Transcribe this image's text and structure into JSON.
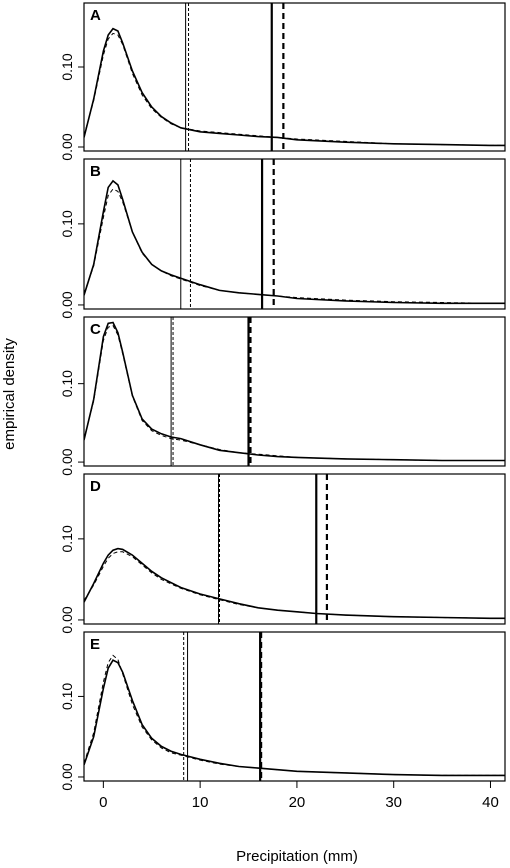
{
  "figure": {
    "ylabel": "empirical density",
    "xlabel": "Precipitation (mm)"
  },
  "chart_data": [
    {
      "type": "line",
      "panel_label": "A",
      "xlim": [
        -2,
        41.5
      ],
      "ylim": [
        -0.005,
        0.18
      ],
      "yticks": [
        0.0,
        0.1
      ],
      "ytick_labels": [
        "0.00",
        "0.10"
      ],
      "series": [
        {
          "style": "solid",
          "x": [
            -2,
            -1,
            0,
            0.5,
            1,
            1.5,
            2,
            3,
            4,
            5,
            6,
            7,
            8,
            10,
            12,
            14,
            16,
            18,
            20,
            25,
            30,
            35,
            40,
            41.5
          ],
          "y": [
            0.012,
            0.06,
            0.12,
            0.14,
            0.148,
            0.145,
            0.13,
            0.095,
            0.068,
            0.05,
            0.038,
            0.03,
            0.024,
            0.019,
            0.017,
            0.015,
            0.013,
            0.012,
            0.009,
            0.006,
            0.004,
            0.003,
            0.002,
            0.002
          ]
        },
        {
          "style": "dashed",
          "x": [
            -2,
            -1,
            0,
            0.5,
            1,
            1.5,
            2,
            3,
            4,
            5,
            6,
            7,
            8,
            10,
            12,
            14,
            16,
            18,
            20,
            25,
            30,
            35,
            40,
            41.5
          ],
          "y": [
            0.014,
            0.058,
            0.115,
            0.135,
            0.142,
            0.14,
            0.128,
            0.092,
            0.065,
            0.048,
            0.037,
            0.029,
            0.024,
            0.02,
            0.018,
            0.016,
            0.014,
            0.012,
            0.01,
            0.007,
            0.004,
            0.003,
            0.002,
            0.002
          ]
        }
      ],
      "vlines": [
        {
          "x": 8.5,
          "style": "thin-solid"
        },
        {
          "x": 8.8,
          "style": "thin-dashed"
        },
        {
          "x": 17.4,
          "style": "thick-solid"
        },
        {
          "x": 18.6,
          "style": "thick-dashed"
        }
      ]
    },
    {
      "type": "line",
      "panel_label": "B",
      "xlim": [
        -2,
        41.5
      ],
      "ylim": [
        -0.005,
        0.18
      ],
      "yticks": [
        0.0,
        0.1
      ],
      "ytick_labels": [
        "0.00",
        "0.10"
      ],
      "series": [
        {
          "style": "solid",
          "x": [
            -2,
            -1,
            0,
            0.5,
            1,
            1.5,
            2,
            3,
            4,
            5,
            6,
            7,
            8,
            10,
            12,
            14,
            16,
            18,
            20,
            25,
            30,
            35,
            40,
            41.5
          ],
          "y": [
            0.012,
            0.05,
            0.115,
            0.145,
            0.153,
            0.148,
            0.13,
            0.09,
            0.065,
            0.05,
            0.042,
            0.037,
            0.033,
            0.025,
            0.018,
            0.015,
            0.013,
            0.011,
            0.008,
            0.005,
            0.003,
            0.002,
            0.002,
            0.002
          ]
        },
        {
          "style": "dashed",
          "x": [
            -2,
            -1,
            0,
            0.5,
            1,
            1.5,
            2,
            3,
            4,
            5,
            6,
            7,
            8,
            10,
            12,
            14,
            16,
            18,
            20,
            25,
            30,
            35,
            40,
            41.5
          ],
          "y": [
            0.014,
            0.048,
            0.108,
            0.135,
            0.143,
            0.14,
            0.127,
            0.09,
            0.064,
            0.05,
            0.042,
            0.036,
            0.032,
            0.024,
            0.018,
            0.015,
            0.013,
            0.011,
            0.009,
            0.006,
            0.004,
            0.003,
            0.002,
            0.002
          ]
        }
      ],
      "vlines": [
        {
          "x": 8.0,
          "style": "thin-solid"
        },
        {
          "x": 9.0,
          "style": "thin-dashed"
        },
        {
          "x": 16.4,
          "style": "thick-solid"
        },
        {
          "x": 17.6,
          "style": "thick-dashed"
        }
      ]
    },
    {
      "type": "line",
      "panel_label": "C",
      "xlim": [
        -2,
        41.5
      ],
      "ylim": [
        -0.005,
        0.185
      ],
      "yticks": [
        0.0,
        0.1
      ],
      "ytick_labels": [
        "0.00",
        "0.10"
      ],
      "series": [
        {
          "style": "solid",
          "x": [
            -2,
            -1,
            0,
            0.5,
            1,
            1.5,
            2,
            3,
            4,
            5,
            6,
            7,
            8,
            10,
            12,
            14,
            16,
            18,
            20,
            25,
            30,
            35,
            40,
            41.5
          ],
          "y": [
            0.028,
            0.08,
            0.16,
            0.177,
            0.178,
            0.165,
            0.14,
            0.085,
            0.055,
            0.042,
            0.036,
            0.032,
            0.03,
            0.022,
            0.015,
            0.012,
            0.009,
            0.007,
            0.006,
            0.004,
            0.003,
            0.002,
            0.002,
            0.002
          ]
        },
        {
          "style": "dashed",
          "x": [
            -2,
            -1,
            0,
            0.5,
            1,
            1.5,
            2,
            3,
            4,
            5,
            6,
            7,
            8,
            10,
            12,
            14,
            16,
            18,
            20,
            25,
            30,
            35,
            40,
            41.5
          ],
          "y": [
            0.03,
            0.078,
            0.155,
            0.172,
            0.174,
            0.162,
            0.138,
            0.084,
            0.053,
            0.04,
            0.034,
            0.03,
            0.028,
            0.022,
            0.016,
            0.012,
            0.01,
            0.008,
            0.006,
            0.004,
            0.003,
            0.002,
            0.002,
            0.002
          ]
        }
      ],
      "vlines": [
        {
          "x": 7.0,
          "style": "thin-solid"
        },
        {
          "x": 7.2,
          "style": "thin-dashed"
        },
        {
          "x": 15.0,
          "style": "thick-solid"
        },
        {
          "x": 15.2,
          "style": "thick-dashed"
        }
      ]
    },
    {
      "type": "line",
      "panel_label": "D",
      "xlim": [
        -2,
        41.5
      ],
      "ylim": [
        -0.005,
        0.18
      ],
      "yticks": [
        0.0,
        0.1
      ],
      "ytick_labels": [
        "0.00",
        "0.10"
      ],
      "series": [
        {
          "style": "solid",
          "x": [
            -2,
            -1,
            0,
            0.5,
            1,
            1.5,
            2,
            3,
            4,
            5,
            6,
            8,
            10,
            12,
            14,
            16,
            18,
            20,
            22,
            25,
            30,
            35,
            40,
            41.5
          ],
          "y": [
            0.022,
            0.045,
            0.07,
            0.08,
            0.086,
            0.088,
            0.087,
            0.08,
            0.07,
            0.06,
            0.052,
            0.04,
            0.032,
            0.026,
            0.02,
            0.015,
            0.012,
            0.01,
            0.008,
            0.006,
            0.004,
            0.003,
            0.002,
            0.002
          ]
        },
        {
          "style": "dashed",
          "x": [
            -2,
            -1,
            0,
            0.5,
            1,
            1.5,
            2,
            3,
            4,
            5,
            6,
            8,
            10,
            12,
            14,
            16,
            18,
            20,
            22,
            25,
            30,
            35,
            40,
            41.5
          ],
          "y": [
            0.024,
            0.043,
            0.066,
            0.076,
            0.082,
            0.084,
            0.084,
            0.078,
            0.068,
            0.058,
            0.05,
            0.039,
            0.031,
            0.025,
            0.019,
            0.015,
            0.012,
            0.01,
            0.008,
            0.006,
            0.004,
            0.003,
            0.002,
            0.002
          ]
        }
      ],
      "vlines": [
        {
          "x": 11.9,
          "style": "thin-solid"
        },
        {
          "x": 12.0,
          "style": "thin-dashed"
        },
        {
          "x": 22.0,
          "style": "thick-solid"
        },
        {
          "x": 23.1,
          "style": "thick-dashed"
        }
      ]
    },
    {
      "type": "line",
      "panel_label": "E",
      "xlim": [
        -2,
        41.5
      ],
      "ylim": [
        -0.005,
        0.18
      ],
      "yticks": [
        0.0,
        0.1
      ],
      "ytick_labels": [
        "0.00",
        "0.10"
      ],
      "series": [
        {
          "style": "solid",
          "x": [
            -2,
            -1,
            0,
            0.5,
            1,
            1.5,
            2,
            3,
            4,
            5,
            6,
            7,
            8,
            10,
            12,
            14,
            16,
            18,
            20,
            25,
            30,
            35,
            40,
            41.5
          ],
          "y": [
            0.015,
            0.05,
            0.11,
            0.135,
            0.145,
            0.142,
            0.13,
            0.095,
            0.065,
            0.048,
            0.038,
            0.032,
            0.028,
            0.022,
            0.017,
            0.013,
            0.011,
            0.009,
            0.007,
            0.005,
            0.003,
            0.002,
            0.002,
            0.002
          ]
        },
        {
          "style": "dashed",
          "x": [
            -2,
            -1,
            0,
            0.5,
            1,
            1.5,
            2,
            3,
            4,
            5,
            6,
            7,
            8,
            10,
            12,
            14,
            16,
            18,
            20,
            25,
            30,
            35,
            40,
            41.5
          ],
          "y": [
            0.017,
            0.055,
            0.118,
            0.142,
            0.151,
            0.146,
            0.128,
            0.09,
            0.062,
            0.046,
            0.036,
            0.03,
            0.027,
            0.021,
            0.016,
            0.013,
            0.011,
            0.009,
            0.007,
            0.005,
            0.003,
            0.002,
            0.002,
            0.002
          ]
        }
      ],
      "vlines": [
        {
          "x": 8.3,
          "style": "thin-dashed"
        },
        {
          "x": 8.7,
          "style": "thin-solid"
        },
        {
          "x": 16.2,
          "style": "thick-solid"
        },
        {
          "x": 16.3,
          "style": "thick-dashed"
        }
      ]
    }
  ],
  "x_axis": {
    "ticks": [
      0,
      10,
      20,
      30,
      40
    ],
    "tick_labels": [
      "0",
      "10",
      "20",
      "30",
      "40"
    ]
  }
}
